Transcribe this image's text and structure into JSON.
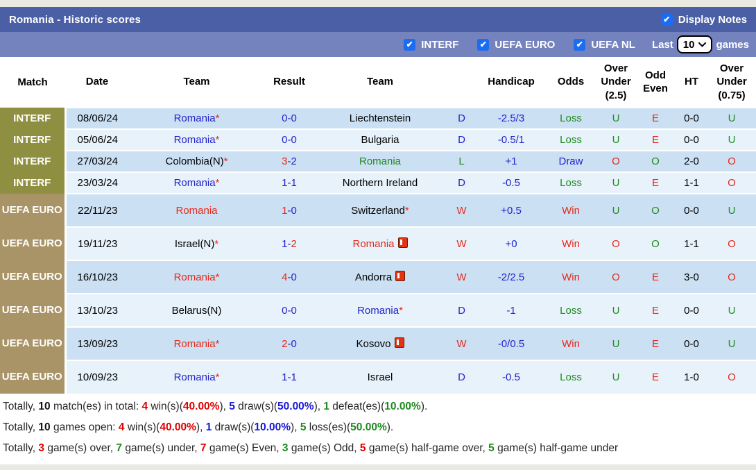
{
  "title_bar": {
    "title": "Romania - Historic scores",
    "display_notes_label": "Display Notes",
    "display_notes_checked": true
  },
  "filter_bar": {
    "filters": [
      {
        "label": "INTERF",
        "checked": true
      },
      {
        "label": "UEFA EURO",
        "checked": true
      },
      {
        "label": "UEFA NL",
        "checked": true
      }
    ],
    "last_label": "Last",
    "games_count": "10",
    "games_label": "games"
  },
  "table": {
    "columns": [
      "Match",
      "Date",
      "Team",
      "Result",
      "Team",
      "",
      "Handicap",
      "Odds",
      "Over Under (2.5)",
      "Odd Even",
      "HT",
      "Over Under (0.75)"
    ],
    "rows": [
      {
        "match": "INTERF",
        "tall": false,
        "date": "08/06/24",
        "home": {
          "name": "Romania",
          "color": "blue",
          "asterisk": true,
          "card": false
        },
        "score": {
          "home": "0",
          "away": "0",
          "home_color": "blue",
          "away_color": "blue"
        },
        "away": {
          "name": "Liechtenstein",
          "color": "black",
          "asterisk": false,
          "card": false
        },
        "wdl": {
          "text": "D",
          "color": "blue"
        },
        "handicap": "-2.5/3",
        "odds": {
          "text": "Loss",
          "color": "green"
        },
        "ou25": {
          "text": "U",
          "color": "green"
        },
        "odd_even": {
          "text": "E",
          "color": "red"
        },
        "ht": "0-0",
        "ou075": {
          "text": "U",
          "color": "green"
        }
      },
      {
        "match": "INTERF",
        "tall": false,
        "date": "05/06/24",
        "home": {
          "name": "Romania",
          "color": "blue",
          "asterisk": true,
          "card": false
        },
        "score": {
          "home": "0",
          "away": "0",
          "home_color": "blue",
          "away_color": "blue"
        },
        "away": {
          "name": "Bulgaria",
          "color": "black",
          "asterisk": false,
          "card": false
        },
        "wdl": {
          "text": "D",
          "color": "blue"
        },
        "handicap": "-0.5/1",
        "odds": {
          "text": "Loss",
          "color": "green"
        },
        "ou25": {
          "text": "U",
          "color": "green"
        },
        "odd_even": {
          "text": "E",
          "color": "red"
        },
        "ht": "0-0",
        "ou075": {
          "text": "U",
          "color": "green"
        }
      },
      {
        "match": "INTERF",
        "tall": false,
        "date": "27/03/24",
        "home": {
          "name": "Colombia(N)",
          "color": "black",
          "asterisk": true,
          "card": false
        },
        "score": {
          "home": "3",
          "away": "2",
          "home_color": "red",
          "away_color": "blue"
        },
        "away": {
          "name": "Romania",
          "color": "green",
          "asterisk": false,
          "card": false
        },
        "wdl": {
          "text": "L",
          "color": "green"
        },
        "handicap": "+1",
        "odds": {
          "text": "Draw",
          "color": "blue"
        },
        "ou25": {
          "text": "O",
          "color": "red"
        },
        "odd_even": {
          "text": "O",
          "color": "green"
        },
        "ht": "2-0",
        "ou075": {
          "text": "O",
          "color": "red"
        }
      },
      {
        "match": "INTERF",
        "tall": false,
        "date": "23/03/24",
        "home": {
          "name": "Romania",
          "color": "blue",
          "asterisk": true,
          "card": false
        },
        "score": {
          "home": "1",
          "away": "1",
          "home_color": "blue",
          "away_color": "blue"
        },
        "away": {
          "name": "Northern Ireland",
          "color": "black",
          "asterisk": false,
          "card": false
        },
        "wdl": {
          "text": "D",
          "color": "blue"
        },
        "handicap": "-0.5",
        "odds": {
          "text": "Loss",
          "color": "green"
        },
        "ou25": {
          "text": "U",
          "color": "green"
        },
        "odd_even": {
          "text": "E",
          "color": "red"
        },
        "ht": "1-1",
        "ou075": {
          "text": "O",
          "color": "red"
        }
      },
      {
        "match": "UEFA EURO",
        "tall": true,
        "date": "22/11/23",
        "home": {
          "name": "Romania",
          "color": "red",
          "asterisk": false,
          "card": false
        },
        "score": {
          "home": "1",
          "away": "0",
          "home_color": "red",
          "away_color": "blue"
        },
        "away": {
          "name": "Switzerland",
          "color": "black",
          "asterisk": true,
          "card": false
        },
        "wdl": {
          "text": "W",
          "color": "red"
        },
        "handicap": "+0.5",
        "odds": {
          "text": "Win",
          "color": "red"
        },
        "ou25": {
          "text": "U",
          "color": "green"
        },
        "odd_even": {
          "text": "O",
          "color": "green"
        },
        "ht": "0-0",
        "ou075": {
          "text": "U",
          "color": "green"
        }
      },
      {
        "match": "UEFA EURO",
        "tall": true,
        "date": "19/11/23",
        "home": {
          "name": "Israel(N)",
          "color": "black",
          "asterisk": true,
          "card": false
        },
        "score": {
          "home": "1",
          "away": "2",
          "home_color": "blue",
          "away_color": "red"
        },
        "away": {
          "name": "Romania",
          "color": "red",
          "asterisk": false,
          "card": true
        },
        "wdl": {
          "text": "W",
          "color": "red"
        },
        "handicap": "+0",
        "odds": {
          "text": "Win",
          "color": "red"
        },
        "ou25": {
          "text": "O",
          "color": "red"
        },
        "odd_even": {
          "text": "O",
          "color": "green"
        },
        "ht": "1-1",
        "ou075": {
          "text": "O",
          "color": "red"
        }
      },
      {
        "match": "UEFA EURO",
        "tall": true,
        "date": "16/10/23",
        "home": {
          "name": "Romania",
          "color": "red",
          "asterisk": true,
          "card": false
        },
        "score": {
          "home": "4",
          "away": "0",
          "home_color": "red",
          "away_color": "blue"
        },
        "away": {
          "name": "Andorra",
          "color": "black",
          "asterisk": false,
          "card": true
        },
        "wdl": {
          "text": "W",
          "color": "red"
        },
        "handicap": "-2/2.5",
        "odds": {
          "text": "Win",
          "color": "red"
        },
        "ou25": {
          "text": "O",
          "color": "red"
        },
        "odd_even": {
          "text": "E",
          "color": "red"
        },
        "ht": "3-0",
        "ou075": {
          "text": "O",
          "color": "red"
        }
      },
      {
        "match": "UEFA EURO",
        "tall": true,
        "date": "13/10/23",
        "home": {
          "name": "Belarus(N)",
          "color": "black",
          "asterisk": false,
          "card": false
        },
        "score": {
          "home": "0",
          "away": "0",
          "home_color": "blue",
          "away_color": "blue"
        },
        "away": {
          "name": "Romania",
          "color": "blue",
          "asterisk": true,
          "card": false
        },
        "wdl": {
          "text": "D",
          "color": "blue"
        },
        "handicap": "-1",
        "odds": {
          "text": "Loss",
          "color": "green"
        },
        "ou25": {
          "text": "U",
          "color": "green"
        },
        "odd_even": {
          "text": "E",
          "color": "red"
        },
        "ht": "0-0",
        "ou075": {
          "text": "U",
          "color": "green"
        }
      },
      {
        "match": "UEFA EURO",
        "tall": true,
        "date": "13/09/23",
        "home": {
          "name": "Romania",
          "color": "red",
          "asterisk": true,
          "card": false
        },
        "score": {
          "home": "2",
          "away": "0",
          "home_color": "red",
          "away_color": "blue"
        },
        "away": {
          "name": "Kosovo",
          "color": "black",
          "asterisk": false,
          "card": true
        },
        "wdl": {
          "text": "W",
          "color": "red"
        },
        "handicap": "-0/0.5",
        "odds": {
          "text": "Win",
          "color": "red"
        },
        "ou25": {
          "text": "U",
          "color": "green"
        },
        "odd_even": {
          "text": "E",
          "color": "red"
        },
        "ht": "0-0",
        "ou075": {
          "text": "U",
          "color": "green"
        }
      },
      {
        "match": "UEFA EURO",
        "tall": true,
        "date": "10/09/23",
        "home": {
          "name": "Romania",
          "color": "blue",
          "asterisk": true,
          "card": false
        },
        "score": {
          "home": "1",
          "away": "1",
          "home_color": "blue",
          "away_color": "blue"
        },
        "away": {
          "name": "Israel",
          "color": "black",
          "asterisk": false,
          "card": false
        },
        "wdl": {
          "text": "D",
          "color": "blue"
        },
        "handicap": "-0.5",
        "odds": {
          "text": "Loss",
          "color": "green"
        },
        "ou25": {
          "text": "U",
          "color": "green"
        },
        "odd_even": {
          "text": "E",
          "color": "red"
        },
        "ht": "1-0",
        "ou075": {
          "text": "O",
          "color": "red"
        }
      }
    ]
  },
  "summary": {
    "lines": [
      [
        {
          "t": "Totally, ",
          "c": "plain"
        },
        {
          "t": "10",
          "c": "black"
        },
        {
          "t": " match(es) in total: ",
          "c": "plain"
        },
        {
          "t": "4",
          "c": "red"
        },
        {
          "t": " win(s)(",
          "c": "plain"
        },
        {
          "t": "40.00%",
          "c": "red"
        },
        {
          "t": "), ",
          "c": "plain"
        },
        {
          "t": "5",
          "c": "blue"
        },
        {
          "t": " draw(s)(",
          "c": "plain"
        },
        {
          "t": "50.00%",
          "c": "blue"
        },
        {
          "t": "), ",
          "c": "plain"
        },
        {
          "t": "1",
          "c": "green"
        },
        {
          "t": " defeat(es)(",
          "c": "plain"
        },
        {
          "t": "10.00%",
          "c": "green"
        },
        {
          "t": ").",
          "c": "plain"
        }
      ],
      [
        {
          "t": "Totally, ",
          "c": "plain"
        },
        {
          "t": "10",
          "c": "black"
        },
        {
          "t": " games open: ",
          "c": "plain"
        },
        {
          "t": "4",
          "c": "red"
        },
        {
          "t": " win(s)(",
          "c": "plain"
        },
        {
          "t": "40.00%",
          "c": "red"
        },
        {
          "t": "), ",
          "c": "plain"
        },
        {
          "t": "1",
          "c": "blue"
        },
        {
          "t": " draw(s)(",
          "c": "plain"
        },
        {
          "t": "10.00%",
          "c": "blue"
        },
        {
          "t": "), ",
          "c": "plain"
        },
        {
          "t": "5",
          "c": "green"
        },
        {
          "t": " loss(es)(",
          "c": "plain"
        },
        {
          "t": "50.00%",
          "c": "green"
        },
        {
          "t": ").",
          "c": "plain"
        }
      ],
      [
        {
          "t": "Totally, ",
          "c": "plain"
        },
        {
          "t": "3",
          "c": "red"
        },
        {
          "t": " game(s) over, ",
          "c": "plain"
        },
        {
          "t": "7",
          "c": "green"
        },
        {
          "t": " game(s) under, ",
          "c": "plain"
        },
        {
          "t": "7",
          "c": "red"
        },
        {
          "t": " game(s) Even, ",
          "c": "plain"
        },
        {
          "t": "3",
          "c": "green"
        },
        {
          "t": " game(s) Odd, ",
          "c": "plain"
        },
        {
          "t": "5",
          "c": "red"
        },
        {
          "t": " game(s) half-game over, ",
          "c": "plain"
        },
        {
          "t": "5",
          "c": "green"
        },
        {
          "t": " game(s) half-game under",
          "c": "plain"
        }
      ]
    ]
  },
  "colors": {
    "title_bar_bg": "#4a5fa5",
    "filter_bar_bg": "#7482bd",
    "checkbox_blue": "#1a6cf2",
    "interf_bg": "#8f8f41",
    "uefa_euro_bg": "#a99467",
    "row_stripe_dark": "#cbe0f3",
    "row_stripe_light": "#e7f2fa",
    "text_blue": "#2323cb",
    "text_red": "#e42a1a",
    "text_green": "#1f8a1f"
  },
  "icons": {
    "check_icon": "✔",
    "red_card_icon": "red-card",
    "chevron_down_icon": "chevron-down"
  }
}
